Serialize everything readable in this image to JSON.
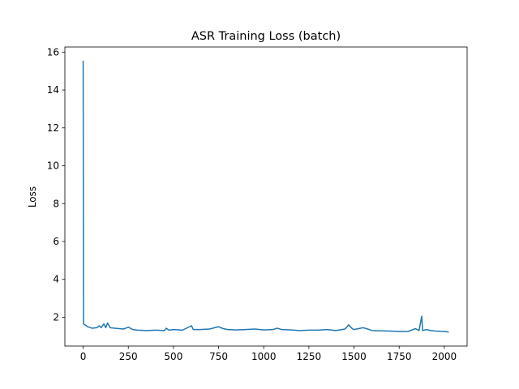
{
  "chart_data": {
    "type": "line",
    "title": "ASR Training Loss (batch)",
    "y_label": "Loss",
    "x": [
      0,
      2,
      10,
      25,
      50,
      75,
      90,
      100,
      115,
      125,
      135,
      150,
      175,
      200,
      225,
      250,
      275,
      300,
      350,
      400,
      450,
      460,
      475,
      500,
      550,
      600,
      610,
      650,
      700,
      750,
      775,
      800,
      850,
      900,
      950,
      1000,
      1050,
      1075,
      1100,
      1150,
      1200,
      1250,
      1300,
      1350,
      1400,
      1450,
      1470,
      1490,
      1500,
      1550,
      1575,
      1600,
      1650,
      1700,
      1750,
      1800,
      1840,
      1860,
      1875,
      1880,
      1900,
      1925,
      1950,
      2000,
      2025
    ],
    "series": [
      {
        "name": "Loss",
        "color": "#1f77b4",
        "values": [
          15.55,
          1.65,
          1.6,
          1.5,
          1.42,
          1.45,
          1.55,
          1.45,
          1.65,
          1.45,
          1.7,
          1.45,
          1.42,
          1.4,
          1.38,
          1.48,
          1.35,
          1.32,
          1.3,
          1.32,
          1.3,
          1.42,
          1.32,
          1.35,
          1.32,
          1.55,
          1.35,
          1.35,
          1.38,
          1.5,
          1.4,
          1.35,
          1.33,
          1.35,
          1.38,
          1.33,
          1.35,
          1.42,
          1.35,
          1.33,
          1.3,
          1.32,
          1.32,
          1.35,
          1.3,
          1.38,
          1.6,
          1.4,
          1.35,
          1.45,
          1.38,
          1.3,
          1.28,
          1.27,
          1.25,
          1.25,
          1.4,
          1.3,
          2.05,
          1.3,
          1.35,
          1.3,
          1.27,
          1.25,
          1.22
        ]
      }
    ],
    "xlim": [
      -101.25,
      2126.25
    ],
    "ylim": [
      0.48,
      16.27
    ],
    "xticks": [
      0,
      250,
      500,
      750,
      1000,
      1250,
      1500,
      1750,
      2000
    ],
    "yticks": [
      2,
      4,
      6,
      8,
      10,
      12,
      14,
      16
    ],
    "grid": false
  }
}
